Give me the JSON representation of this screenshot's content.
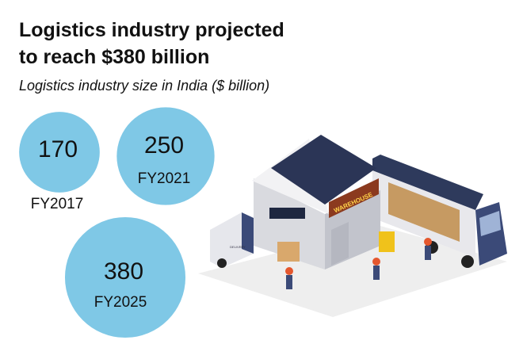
{
  "chart_data": {
    "type": "bubble",
    "title": [
      "Logistics industry projected",
      "to reach $380 billion"
    ],
    "subtitle": "Logistics industry size in India ($ billion)",
    "categories": [
      "FY2017",
      "FY2021",
      "FY2025"
    ],
    "values": [
      170,
      250,
      380
    ],
    "color": "#7fc8e6"
  },
  "annotations": [
    "WAREHOUSE",
    "DELIVERY"
  ]
}
